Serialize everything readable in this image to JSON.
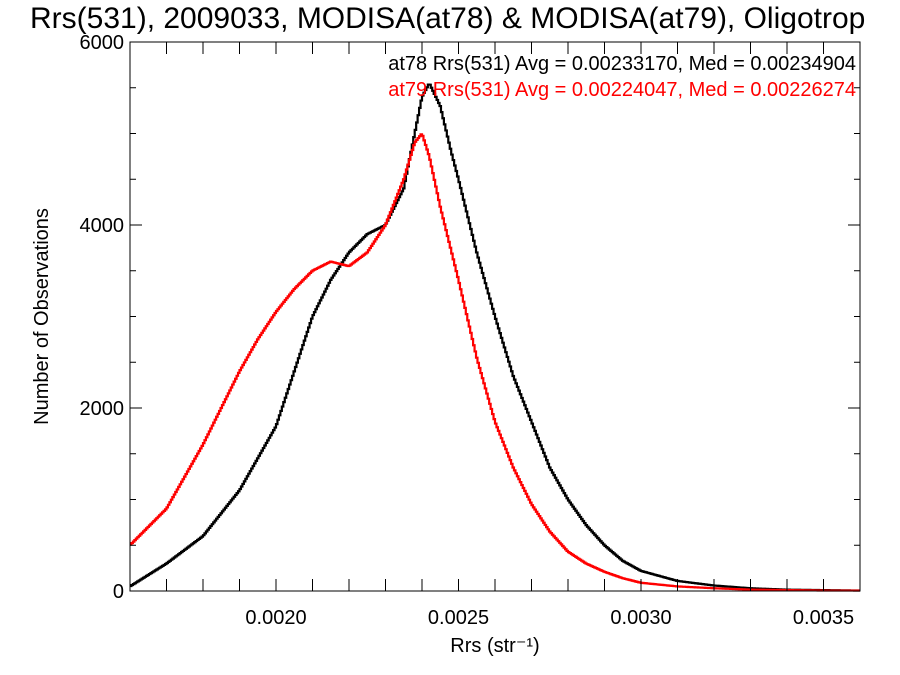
{
  "chart_data": {
    "type": "line",
    "title": "Rrs(531), 2009033, MODISA(at78) & MODISA(at79), Oligotrop",
    "xlabel": "Rrs (str⁻¹)",
    "ylabel": "Number of Observations",
    "xlim": [
      0.0016,
      0.0036
    ],
    "ylim": [
      0,
      6000
    ],
    "x_ticks": [
      {
        "value": 0.002,
        "label": "0.0020"
      },
      {
        "value": 0.0025,
        "label": "0.0025"
      },
      {
        "value": 0.003,
        "label": "0.0030"
      },
      {
        "value": 0.0035,
        "label": "0.0035"
      }
    ],
    "y_ticks": [
      {
        "value": 0,
        "label": "0"
      },
      {
        "value": 2000,
        "label": "2000"
      },
      {
        "value": 4000,
        "label": "4000"
      },
      {
        "value": 6000,
        "label": "6000"
      }
    ],
    "grid": false,
    "annotations": [
      {
        "text": "at78 Rrs(531) Avg = 0.00233170, Med = 0.00234904",
        "color": "#000000"
      },
      {
        "text": "at79 Rrs(531) Avg = 0.00224047, Med = 0.00226274",
        "color": "#ff0000"
      }
    ],
    "series": [
      {
        "color": "#000000",
        "x": [
          0.0016,
          0.0017,
          0.0018,
          0.0019,
          0.002,
          0.00205,
          0.0021,
          0.00215,
          0.0022,
          0.00225,
          0.0023,
          0.00235,
          0.00238,
          0.0024,
          0.00242,
          0.00245,
          0.00248,
          0.0025,
          0.00255,
          0.0026,
          0.00265,
          0.0027,
          0.00275,
          0.0028,
          0.00285,
          0.0029,
          0.00295,
          0.003,
          0.0031,
          0.0032,
          0.0033,
          0.0034,
          0.0035,
          0.0036
        ],
        "y": [
          50,
          300,
          600,
          1100,
          1800,
          2400,
          3000,
          3400,
          3700,
          3900,
          4000,
          4400,
          5000,
          5400,
          5550,
          5300,
          4800,
          4500,
          3700,
          3000,
          2350,
          1850,
          1350,
          1000,
          720,
          500,
          330,
          220,
          110,
          60,
          30,
          15,
          10,
          5
        ]
      },
      {
        "color": "#ff0000",
        "x": [
          0.0016,
          0.0017,
          0.0018,
          0.0019,
          0.00195,
          0.002,
          0.00205,
          0.0021,
          0.00215,
          0.0022,
          0.00225,
          0.0023,
          0.00235,
          0.00238,
          0.0024,
          0.00242,
          0.00245,
          0.0025,
          0.00255,
          0.0026,
          0.00265,
          0.0027,
          0.00275,
          0.0028,
          0.00285,
          0.0029,
          0.00295,
          0.003,
          0.0031,
          0.0032,
          0.0033,
          0.0034,
          0.0035,
          0.0036
        ],
        "y": [
          500,
          900,
          1600,
          2400,
          2750,
          3050,
          3300,
          3500,
          3600,
          3550,
          3700,
          4000,
          4500,
          4900,
          5000,
          4750,
          4200,
          3400,
          2550,
          1850,
          1350,
          950,
          650,
          430,
          300,
          210,
          140,
          90,
          50,
          30,
          15,
          10,
          5,
          5
        ]
      }
    ]
  }
}
